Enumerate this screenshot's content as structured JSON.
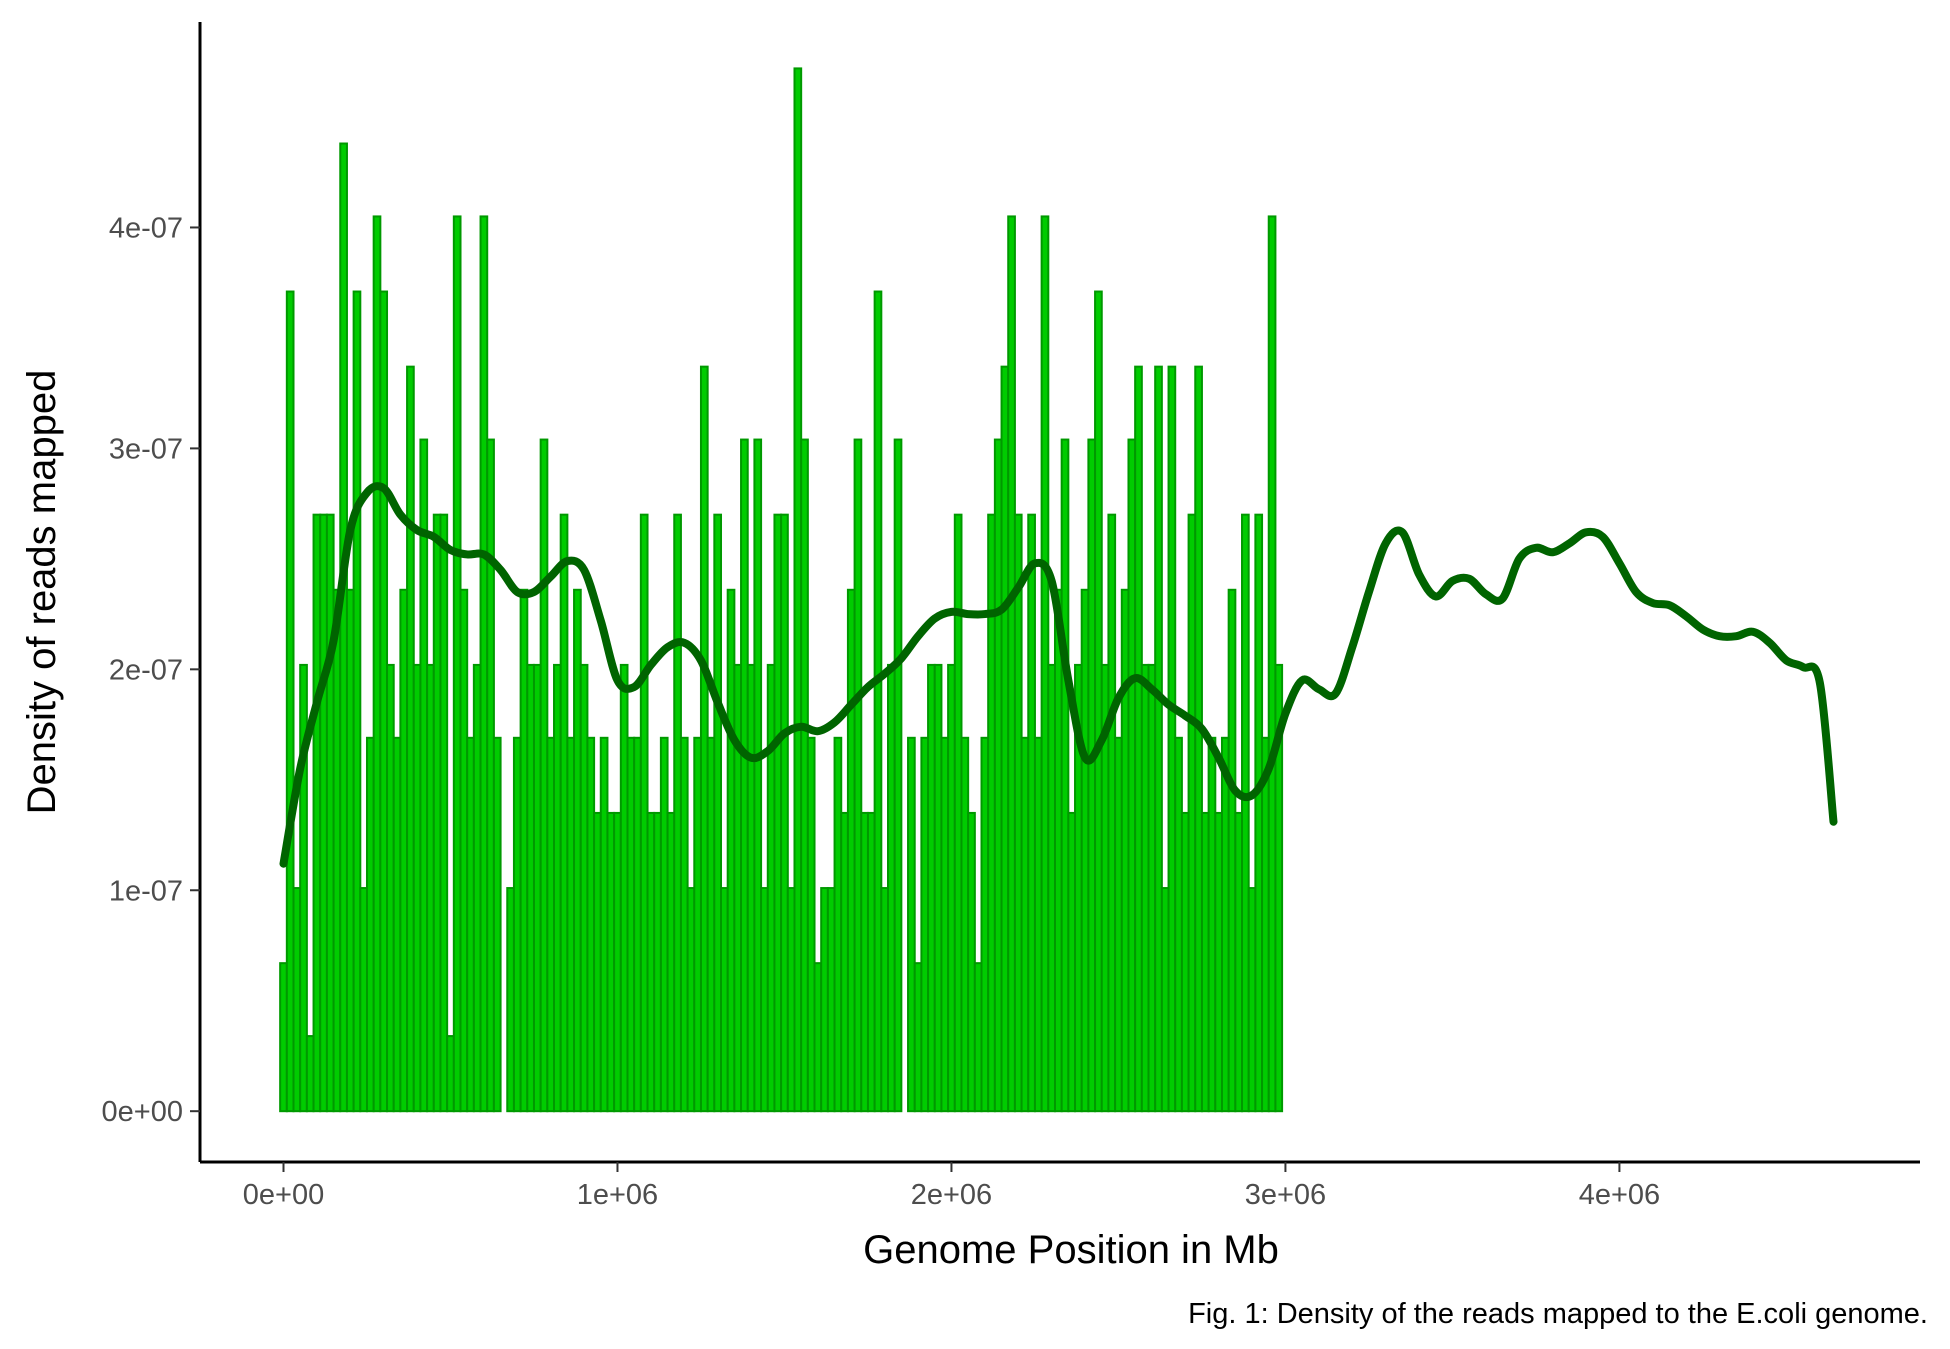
{
  "chart_data": {
    "type": "bar",
    "title": "",
    "xlabel": "Genome Position in Mb",
    "ylabel": "Density of reads mapped",
    "caption": "Fig. 1: Density of the reads mapped to the E.coli genome.",
    "xlim": [
      -250000,
      4900000
    ],
    "ylim": [
      -2.3e-08,
      4.93e-07
    ],
    "x_ticks": [
      0,
      1000000,
      2000000,
      3000000,
      4000000
    ],
    "x_tick_labels": [
      "0e+00",
      "1e+06",
      "2e+06",
      "3e+06",
      "4e+06"
    ],
    "y_ticks": [
      0,
      1e-07,
      2e-07,
      3e-07,
      4e-07
    ],
    "y_tick_labels": [
      "0e+00",
      "1e-07",
      "2e-07",
      "3e-07",
      "4e-07"
    ],
    "grid": false,
    "legend": "none",
    "bin_width": 20000,
    "bin_start": -10000,
    "values": [
      6.7e-08,
      3.71e-07,
      1.01e-07,
      2.02e-07,
      3.4e-08,
      2.7e-07,
      2.7e-07,
      2.7e-07,
      2.36e-07,
      4.38e-07,
      2.36e-07,
      3.71e-07,
      1.01e-07,
      1.69e-07,
      4.05e-07,
      3.71e-07,
      2.02e-07,
      1.69e-07,
      2.36e-07,
      3.37e-07,
      2.02e-07,
      3.04e-07,
      2.02e-07,
      2.7e-07,
      2.7e-07,
      3.4e-08,
      4.05e-07,
      2.36e-07,
      1.69e-07,
      2.02e-07,
      4.05e-07,
      3.04e-07,
      1.69e-07,
      0,
      1.01e-07,
      1.69e-07,
      2.36e-07,
      2.02e-07,
      2.02e-07,
      3.04e-07,
      1.69e-07,
      2.02e-07,
      2.7e-07,
      1.69e-07,
      2.36e-07,
      2.02e-07,
      1.69e-07,
      1.35e-07,
      1.69e-07,
      1.35e-07,
      1.35e-07,
      2.02e-07,
      1.69e-07,
      1.69e-07,
      2.7e-07,
      1.35e-07,
      1.35e-07,
      1.69e-07,
      1.35e-07,
      2.7e-07,
      1.69e-07,
      1.01e-07,
      1.69e-07,
      3.37e-07,
      1.69e-07,
      2.7e-07,
      1.01e-07,
      2.36e-07,
      2.02e-07,
      3.04e-07,
      2.02e-07,
      3.04e-07,
      1.01e-07,
      2.02e-07,
      2.7e-07,
      2.7e-07,
      1.01e-07,
      4.72e-07,
      3.04e-07,
      1.69e-07,
      6.7e-08,
      1.01e-07,
      1.01e-07,
      1.69e-07,
      1.35e-07,
      2.36e-07,
      3.04e-07,
      1.35e-07,
      1.35e-07,
      3.71e-07,
      1.01e-07,
      2.02e-07,
      3.04e-07,
      0,
      1.69e-07,
      6.7e-08,
      1.69e-07,
      2.02e-07,
      2.02e-07,
      1.69e-07,
      2.02e-07,
      2.7e-07,
      1.69e-07,
      1.35e-07,
      6.7e-08,
      1.69e-07,
      2.7e-07,
      3.04e-07,
      3.37e-07,
      4.05e-07,
      2.7e-07,
      1.69e-07,
      2.7e-07,
      1.69e-07,
      4.05e-07,
      2.02e-07,
      2.36e-07,
      3.04e-07,
      1.35e-07,
      2.02e-07,
      2.36e-07,
      3.04e-07,
      3.71e-07,
      2.02e-07,
      2.7e-07,
      1.69e-07,
      2.36e-07,
      3.04e-07,
      3.37e-07,
      2.02e-07,
      2.02e-07,
      3.37e-07,
      1.01e-07,
      3.37e-07,
      1.69e-07,
      1.35e-07,
      2.7e-07,
      3.37e-07,
      1.35e-07,
      1.69e-07,
      1.35e-07,
      1.69e-07,
      2.36e-07,
      1.35e-07,
      2.7e-07,
      1.01e-07,
      2.7e-07,
      1.69e-07,
      4.05e-07,
      2.02e-07
    ],
    "smooth_line": {
      "color": "#006400",
      "x": [
        0,
        50000,
        100000,
        150000,
        200000,
        250000,
        300000,
        350000,
        400000,
        450000,
        500000,
        550000,
        600000,
        650000,
        700000,
        750000,
        800000,
        850000,
        900000,
        950000,
        1000000,
        1050000,
        1100000,
        1150000,
        1200000,
        1250000,
        1300000,
        1350000,
        1400000,
        1450000,
        1500000,
        1550000,
        1600000,
        1650000,
        1700000,
        1750000,
        1800000,
        1850000,
        1900000,
        1950000,
        2000000,
        2050000,
        2100000,
        2150000,
        2200000,
        2250000,
        2300000,
        2350000,
        2400000,
        2450000,
        2500000,
        2550000,
        2600000,
        2650000,
        2700000,
        2750000,
        2800000,
        2850000,
        2900000,
        2950000,
        3000000,
        3050000,
        3100000,
        3150000,
        3200000,
        3250000,
        3300000,
        3350000,
        3400000,
        3450000,
        3500000,
        3550000,
        3600000,
        3650000,
        3700000,
        3750000,
        3800000,
        3850000,
        3900000,
        3950000,
        4000000,
        4050000,
        4100000,
        4150000,
        4200000,
        4250000,
        4300000,
        4350000,
        4400000,
        4450000,
        4500000,
        4550000,
        4600000,
        4641000
      ],
      "y": [
        1.12e-07,
        1.55e-07,
        1.85e-07,
        2.13e-07,
        2.63e-07,
        2.8e-07,
        2.82e-07,
        2.7e-07,
        2.63e-07,
        2.6e-07,
        2.54e-07,
        2.52e-07,
        2.52e-07,
        2.45e-07,
        2.35e-07,
        2.35e-07,
        2.42e-07,
        2.49e-07,
        2.45e-07,
        2.22e-07,
        1.95e-07,
        1.92e-07,
        2.02e-07,
        2.1e-07,
        2.12e-07,
        2.04e-07,
        1.85e-07,
        1.68e-07,
        1.6e-07,
        1.63e-07,
        1.71e-07,
        1.74e-07,
        1.72e-07,
        1.76e-07,
        1.84e-07,
        1.92e-07,
        1.98e-07,
        2.05e-07,
        2.15e-07,
        2.23e-07,
        2.26e-07,
        2.25e-07,
        2.25e-07,
        2.27e-07,
        2.37e-07,
        2.48e-07,
        2.4e-07,
        1.95e-07,
        1.6e-07,
        1.68e-07,
        1.87e-07,
        1.96e-07,
        1.91e-07,
        1.84e-07,
        1.79e-07,
        1.73e-07,
        1.6e-07,
        1.45e-07,
        1.43e-07,
        1.55e-07,
        1.8e-07,
        1.95e-07,
        1.91e-07,
        1.89e-07,
        2.1e-07,
        2.35e-07,
        2.57e-07,
        2.62e-07,
        2.43e-07,
        2.33e-07,
        2.4e-07,
        2.41e-07,
        2.34e-07,
        2.32e-07,
        2.5e-07,
        2.55e-07,
        2.53e-07,
        2.57e-07,
        2.62e-07,
        2.6e-07,
        2.48e-07,
        2.35e-07,
        2.3e-07,
        2.29e-07,
        2.24e-07,
        2.18e-07,
        2.15e-07,
        2.15e-07,
        2.17e-07,
        2.12e-07,
        2.04e-07,
        2.01e-07,
        1.94e-07,
        1.31e-07
      ]
    }
  }
}
